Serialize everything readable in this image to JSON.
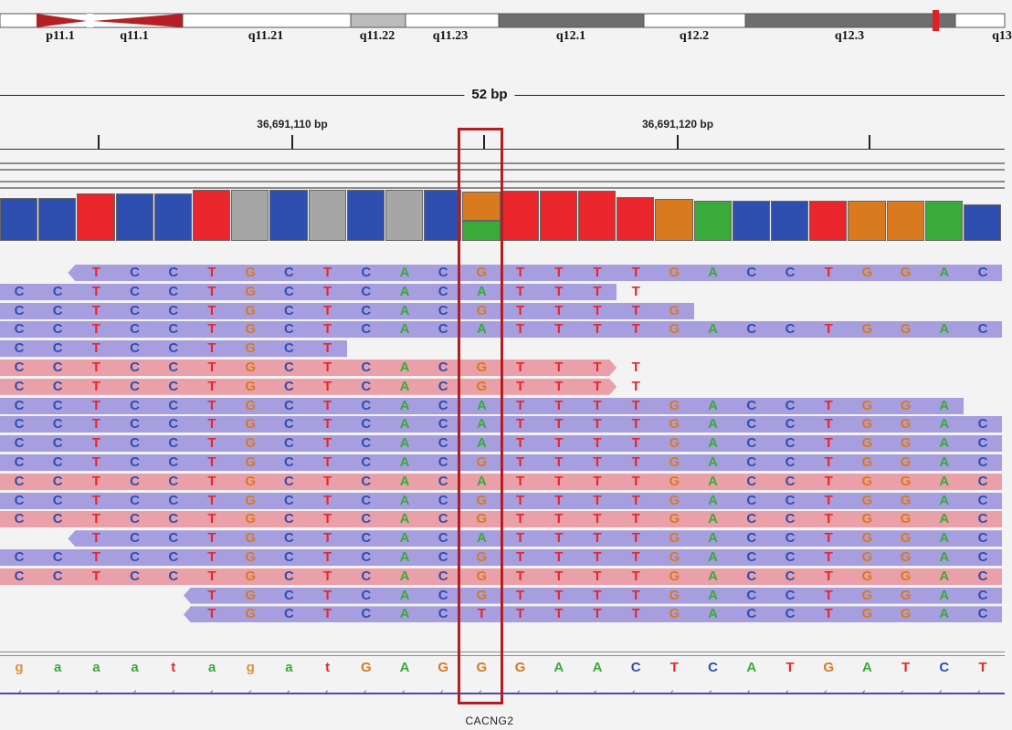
{
  "ideogram": {
    "bands": [
      {
        "label": "p11.1",
        "center": "p11.1"
      },
      {
        "label": "q11.1"
      },
      {
        "label": "q11.21"
      },
      {
        "label": "q11.22"
      },
      {
        "label": "q11.23"
      },
      {
        "label": "q12.1"
      },
      {
        "label": "q12.2"
      },
      {
        "label": "q12.3"
      },
      {
        "label": "q13"
      }
    ]
  },
  "ruler": {
    "span": "52 bp",
    "positions": [
      "36,691,110 bp",
      "36,691,120 bp"
    ]
  },
  "colors": {
    "A": "#3aaa3a",
    "C": "#2f4fb0",
    "G": "#d97a1f",
    "T": "#e8262b",
    "ref_lower": "#e0903a",
    "read_forward": "#a79ee0",
    "read_reverse": "#eaa0a8",
    "coverage_gray": "#a6a6a6",
    "highlight": "#b41e22"
  },
  "coverage": [
    {
      "base": "C"
    },
    {
      "base": "C"
    },
    {
      "base": "T"
    },
    {
      "base": "C"
    },
    {
      "base": "C"
    },
    {
      "base": "T"
    },
    {
      "base": "G",
      "gray": true
    },
    {
      "base": "C"
    },
    {
      "base": "T",
      "gray": true
    },
    {
      "base": "C"
    },
    {
      "base": "A",
      "gray": true
    },
    {
      "base": "C"
    },
    {
      "split": true
    },
    {
      "base": "T"
    },
    {
      "base": "T"
    },
    {
      "base": "T"
    },
    {
      "base": "T"
    },
    {
      "base": "G"
    },
    {
      "base": "A"
    },
    {
      "base": "C"
    },
    {
      "base": "C"
    },
    {
      "base": "T"
    },
    {
      "base": "G"
    },
    {
      "base": "G"
    },
    {
      "base": "A"
    },
    {
      "base": "C"
    }
  ],
  "reads": [
    {
      "strand": "reverse",
      "color": "forward",
      "start": 2,
      "end": 25,
      "seq": "TCCTGCTCACGTTTTGACCTGGAC"
    },
    {
      "strand": "none",
      "color": "forward",
      "start": 0,
      "end": 15,
      "seq": "CCTCCTGCTCACATTTT"
    },
    {
      "strand": "none",
      "color": "forward",
      "start": 0,
      "end": 17,
      "seq": "CCTCCTGCTCACGTTTTG"
    },
    {
      "strand": "none",
      "color": "forward",
      "start": 0,
      "end": 25,
      "seq": "CCTCCTGCTCACATTTTGACCTGGAC"
    },
    {
      "strand": "none",
      "color": "forward",
      "start": 0,
      "end": 8,
      "seq": "CCTCCTGCT"
    },
    {
      "strand": "forward",
      "color": "reverse",
      "start": 0,
      "end": 15,
      "seq": "CCTCCTGCTCACGTTTT"
    },
    {
      "strand": "forward",
      "color": "reverse",
      "start": 0,
      "end": 15,
      "seq": "CCTCCTGCTCACGTTTT"
    },
    {
      "strand": "none",
      "color": "forward",
      "start": 0,
      "end": 24,
      "seq": "CCTCCTGCTCACATTTTGACCTGGA"
    },
    {
      "strand": "none",
      "color": "forward",
      "start": 0,
      "end": 25,
      "seq": "CCTCCTGCTCACATTTTGACCTGGAC"
    },
    {
      "strand": "none",
      "color": "forward",
      "start": 0,
      "end": 25,
      "seq": "CCTCCTGCTCACATTTTGACCTGGAC"
    },
    {
      "strand": "none",
      "color": "forward",
      "start": 0,
      "end": 25,
      "seq": "CCTCCTGCTCACGTTTTGACCTGGAC"
    },
    {
      "strand": "none",
      "color": "reverse",
      "start": 0,
      "end": 25,
      "seq": "CCTCCTGCTCACATTTTGACCTGGAC"
    },
    {
      "strand": "none",
      "color": "forward",
      "start": 0,
      "end": 25,
      "seq": "CCTCCTGCTCACGTTTTGACCTGGAC"
    },
    {
      "strand": "none",
      "color": "reverse",
      "start": 0,
      "end": 25,
      "seq": "CCTCCTGCTCACGTTTTGACCTGGAC"
    },
    {
      "strand": "reverse",
      "color": "forward",
      "start": 2,
      "end": 25,
      "seq": "TCCTGCTCACATTTTGACCTGGAC"
    },
    {
      "strand": "none",
      "color": "forward",
      "start": 0,
      "end": 25,
      "seq": "CCTCCTGCTCACGTTTTGACCTGGAC"
    },
    {
      "strand": "none",
      "color": "reverse",
      "start": 0,
      "end": 25,
      "seq": "CCTCCTGCTCACGTTTTGACCTGGAC"
    },
    {
      "strand": "reverse",
      "color": "forward",
      "start": 5,
      "end": 25,
      "seq": "TGCTCACGTTTTGACCTGGAC"
    },
    {
      "strand": "reverse",
      "color": "forward",
      "start": 5,
      "end": 25,
      "seq": "TGCTCACTTTTTGACCTGGAC"
    }
  ],
  "reference": [
    "g",
    "a",
    "a",
    "a",
    "t",
    "a",
    "g",
    "a",
    "t",
    "G",
    "A",
    "G",
    "G",
    "G",
    "A",
    "A",
    "C",
    "T",
    "C",
    "A",
    "T",
    "G",
    "A",
    "T",
    "C",
    "T"
  ],
  "gene": {
    "name": "CACNG2"
  }
}
